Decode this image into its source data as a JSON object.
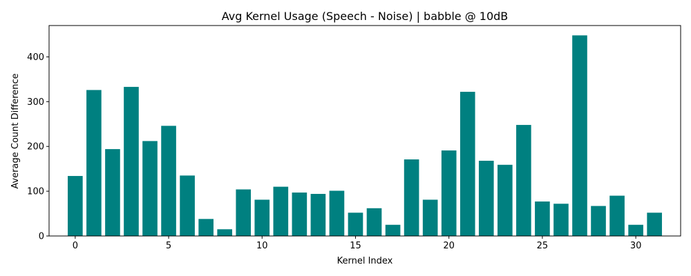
{
  "chart_data": {
    "type": "bar",
    "title": "Avg Kernel Usage (Speech - Noise) | babble @ 10dB",
    "xlabel": "Kernel Index",
    "ylabel": "Average Count Difference",
    "bar_color": "#008080",
    "x": [
      0,
      1,
      2,
      3,
      4,
      5,
      6,
      7,
      8,
      9,
      10,
      11,
      12,
      13,
      14,
      15,
      16,
      17,
      18,
      19,
      20,
      21,
      22,
      23,
      24,
      25,
      26,
      27,
      28,
      29,
      30,
      31
    ],
    "values": [
      134,
      326,
      194,
      333,
      212,
      246,
      135,
      38,
      15,
      104,
      81,
      110,
      97,
      94,
      101,
      52,
      62,
      25,
      171,
      81,
      191,
      322,
      168,
      159,
      248,
      77,
      72,
      448,
      67,
      90,
      25,
      52
    ],
    "xlim": [
      -1.4,
      32.4
    ],
    "ylim": [
      0,
      470
    ],
    "xticks": [
      0,
      5,
      10,
      15,
      20,
      25,
      30
    ],
    "yticks": [
      0,
      100,
      200,
      300,
      400
    ],
    "grid": false,
    "legend": "none"
  }
}
